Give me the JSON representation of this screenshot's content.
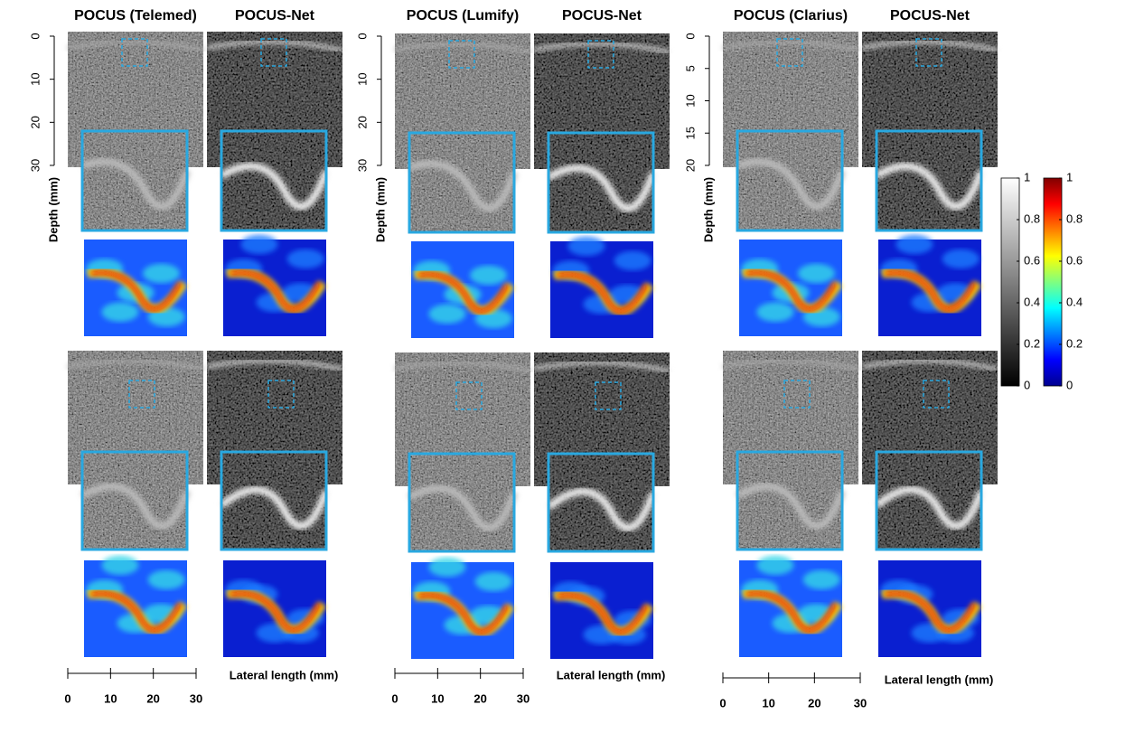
{
  "panels": [
    {
      "titles": [
        "POCUS (Telemed)",
        "POCUS-Net"
      ],
      "depth_label": "Depth (mm)",
      "depth_ticks": [
        0,
        10,
        20,
        30
      ],
      "lateral_label": "Lateral length (mm)",
      "lateral_ticks": [
        0,
        10,
        20,
        30
      ]
    },
    {
      "titles": [
        "POCUS (Lumify)",
        "POCUS-Net"
      ],
      "depth_label": "Depth (mm)",
      "depth_ticks": [
        0,
        10,
        20,
        30
      ],
      "lateral_label": "Lateral length (mm)",
      "lateral_ticks": [
        0,
        10,
        20,
        30
      ]
    },
    {
      "titles": [
        "POCUS (Clarius)",
        "POCUS-Net"
      ],
      "depth_label": "Depth (mm)",
      "depth_ticks": [
        0,
        5,
        10,
        15,
        20
      ],
      "lateral_label": "Lateral length (mm)",
      "lateral_ticks": [
        0,
        10,
        20,
        30
      ]
    }
  ],
  "colorbars": [
    {
      "ticks": [
        0,
        0.2,
        0.4,
        0.6,
        0.8,
        1
      ]
    },
    {
      "ticks": [
        0,
        0.2,
        0.4,
        0.6,
        0.8,
        1
      ]
    }
  ]
}
